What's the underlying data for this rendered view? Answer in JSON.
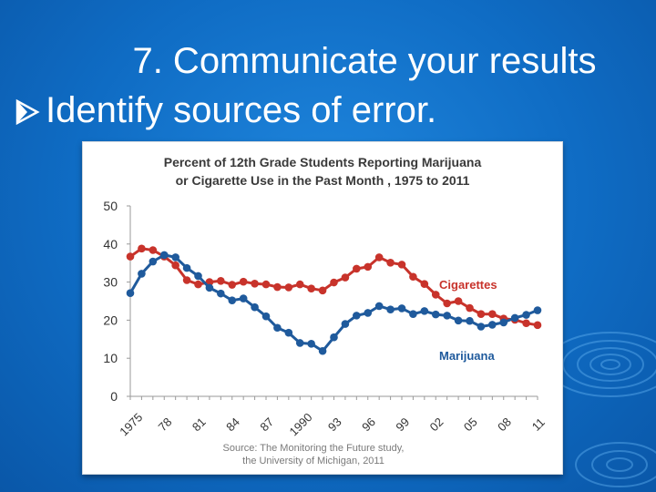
{
  "slide": {
    "title": "7. Communicate your results",
    "bullet": "Identify sources of error."
  },
  "colors": {
    "background": "#1574d0",
    "cigarettes": "#c8332b",
    "marijuana": "#1f5a9c"
  },
  "chart_data": {
    "type": "line",
    "title_line1": "Percent of 12th Grade Students Reporting Marijuana",
    "title_line2": "or Cigarette Use in the Past Month , 1975 to 2011",
    "xlabel": "",
    "ylabel": "",
    "x": [
      1975,
      1976,
      1977,
      1978,
      1979,
      1980,
      1981,
      1982,
      1983,
      1984,
      1985,
      1986,
      1987,
      1988,
      1989,
      1990,
      1991,
      1992,
      1993,
      1994,
      1995,
      1996,
      1997,
      1998,
      1999,
      2000,
      2001,
      2002,
      2003,
      2004,
      2005,
      2006,
      2007,
      2008,
      2009,
      2010,
      2011
    ],
    "x_tick_values": [
      1975,
      1978,
      1981,
      1984,
      1987,
      1990,
      1993,
      1996,
      1999,
      2002,
      2005,
      2008,
      2011
    ],
    "x_tick_labels": [
      "1975",
      "78",
      "81",
      "84",
      "87",
      "1990",
      "93",
      "96",
      "99",
      "02",
      "05",
      "08",
      "11"
    ],
    "ylim": [
      0,
      50
    ],
    "y_ticks": [
      0,
      10,
      20,
      30,
      40,
      50
    ],
    "grid": false,
    "series": [
      {
        "name": "Cigarettes",
        "color": "#c8332b",
        "values": [
          36.7,
          38.8,
          38.4,
          36.7,
          34.4,
          30.5,
          29.4,
          30.0,
          30.3,
          29.3,
          30.1,
          29.6,
          29.4,
          28.7,
          28.6,
          29.4,
          28.3,
          27.8,
          29.9,
          31.2,
          33.5,
          34.0,
          36.5,
          35.1,
          34.6,
          31.4,
          29.5,
          26.7,
          24.4,
          25.0,
          23.2,
          21.6,
          21.6,
          20.4,
          20.1,
          19.2,
          18.7
        ]
      },
      {
        "name": "Marijuana",
        "color": "#1f5a9c",
        "values": [
          27.1,
          32.2,
          35.4,
          37.1,
          36.5,
          33.7,
          31.6,
          28.5,
          27.0,
          25.2,
          25.7,
          23.4,
          21.0,
          18.0,
          16.7,
          14.0,
          13.8,
          11.9,
          15.5,
          19.0,
          21.2,
          21.9,
          23.7,
          22.8,
          23.1,
          21.6,
          22.4,
          21.5,
          21.2,
          19.9,
          19.8,
          18.3,
          18.8,
          19.4,
          20.6,
          21.4,
          22.6
        ]
      }
    ],
    "source_line1": "Source: The Monitoring the Future study,",
    "source_line2": "the University of Michigan, 2011"
  }
}
